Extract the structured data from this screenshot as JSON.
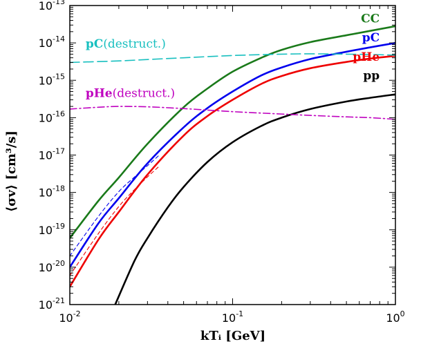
{
  "chart_data": {
    "type": "line",
    "xscale": "log",
    "yscale": "log",
    "xlim": [
      0.01,
      1
    ],
    "ylim": [
      1e-21,
      1e-13
    ],
    "xlabel": "kT_i [GeV]",
    "ylabel": "⟨σv⟩ [cm³/s]",
    "grid": false,
    "x_ticks": [
      {
        "value": 0.01,
        "base": "10",
        "exp": "-2"
      },
      {
        "value": 0.1,
        "base": "10",
        "exp": "-1"
      },
      {
        "value": 1,
        "base": "10",
        "exp": "0"
      }
    ],
    "y_ticks": [
      {
        "value": 1e-13,
        "base": "10",
        "exp": "-13"
      },
      {
        "value": 1e-14,
        "base": "10",
        "exp": "-14"
      },
      {
        "value": 1e-15,
        "base": "10",
        "exp": "-15"
      },
      {
        "value": 1e-16,
        "base": "10",
        "exp": "-16"
      },
      {
        "value": 1e-17,
        "base": "10",
        "exp": "-17"
      },
      {
        "value": 1e-18,
        "base": "10",
        "exp": "-18"
      },
      {
        "value": 1e-19,
        "base": "10",
        "exp": "-19"
      },
      {
        "value": 1e-20,
        "base": "10",
        "exp": "-20"
      },
      {
        "value": 1e-21,
        "base": "10",
        "exp": "-21"
      }
    ],
    "series": [
      {
        "name": "CC",
        "color": "#1a7a1a",
        "style": "solid",
        "x": [
          0.01,
          0.015,
          0.02,
          0.03,
          0.05,
          0.07,
          0.1,
          0.15,
          0.2,
          0.3,
          0.5,
          0.7,
          1.0
        ],
        "y": [
          6e-20,
          6e-19,
          2.5e-18,
          2e-17,
          1.9e-16,
          6e-16,
          1.7e-15,
          4e-15,
          6.5e-15,
          1.05e-14,
          1.6e-14,
          2.1e-14,
          2.8e-14
        ]
      },
      {
        "name": "pC",
        "color": "#0000ee",
        "style": "solid",
        "x": [
          0.01,
          0.015,
          0.02,
          0.03,
          0.05,
          0.07,
          0.1,
          0.15,
          0.2,
          0.3,
          0.5,
          0.7,
          1.0
        ],
        "y": [
          1e-20,
          1.5e-19,
          7e-19,
          6e-18,
          5.5e-17,
          1.8e-16,
          5e-16,
          1.35e-15,
          2.2e-15,
          3.7e-15,
          5.8e-15,
          7.6e-15,
          1e-14
        ]
      },
      {
        "name": "pHe",
        "color": "#ee0000",
        "style": "solid",
        "x": [
          0.01,
          0.015,
          0.02,
          0.03,
          0.05,
          0.07,
          0.1,
          0.15,
          0.2,
          0.3,
          0.5,
          0.7,
          1.0
        ],
        "y": [
          3e-21,
          5.5e-20,
          3e-19,
          3e-18,
          3.3e-17,
          1.1e-16,
          3e-16,
          8e-16,
          1.3e-15,
          2.1e-15,
          3.1e-15,
          3.8e-15,
          4.5e-15
        ]
      },
      {
        "name": "pp",
        "color": "#000000",
        "style": "solid",
        "x": [
          0.019,
          0.025,
          0.03,
          0.04,
          0.05,
          0.07,
          0.1,
          0.15,
          0.2,
          0.3,
          0.5,
          0.7,
          1.0
        ],
        "y": [
          1e-21,
          1.5e-20,
          6e-20,
          4e-19,
          1.4e-18,
          6.5e-18,
          2.2e-17,
          6e-17,
          1e-16,
          1.7e-16,
          2.7e-16,
          3.4e-16,
          4.2e-16
        ]
      },
      {
        "name": "pC(destruct.)",
        "color": "#17bfbf",
        "style": "dashed",
        "x": [
          0.01,
          0.02,
          0.03,
          0.05,
          0.1,
          0.2,
          0.3,
          0.5,
          0.7,
          1.0
        ],
        "y": [
          3e-15,
          3.3e-15,
          3.6e-15,
          4e-15,
          4.6e-15,
          5e-15,
          5.1e-15,
          5e-15,
          4.9e-15,
          4.7e-15
        ]
      },
      {
        "name": "pHe(destruct.)",
        "color": "#bf00bf",
        "style": "dashdot",
        "x": [
          0.01,
          0.015,
          0.02,
          0.03,
          0.05,
          0.1,
          0.2,
          0.3,
          0.5,
          0.7,
          1.0
        ],
        "y": [
          1.7e-16,
          1.9e-16,
          2e-16,
          1.95e-16,
          1.75e-16,
          1.45e-16,
          1.25e-16,
          1.15e-16,
          1.05e-16,
          1e-16,
          9e-17
        ]
      },
      {
        "name": "",
        "color": "#0000ee",
        "style": "thin-dashed",
        "x": [
          0.01,
          0.015,
          0.02,
          0.025,
          0.03,
          0.035
        ],
        "y": [
          2e-20,
          2.3e-19,
          1.05e-18,
          2.6e-18,
          5.2e-18,
          9.5e-18
        ]
      },
      {
        "name": "",
        "color": "#ee0000",
        "style": "thin-dashed",
        "x": [
          0.01,
          0.015,
          0.02,
          0.025,
          0.03,
          0.035
        ],
        "y": [
          6e-21,
          8e-20,
          4.2e-19,
          1.2e-18,
          2.6e-18,
          4.8e-18
        ]
      }
    ],
    "labels": [
      {
        "key": "CC",
        "bold": "CC",
        "normal": "",
        "color": "#1a7a1a",
        "x": 0.8,
        "y": 3.5e-14,
        "anchor": "end"
      },
      {
        "key": "pC",
        "bold": "pC",
        "normal": "",
        "color": "#0000ee",
        "x": 0.8,
        "y": 1.1e-14,
        "anchor": "end"
      },
      {
        "key": "pHe",
        "bold": "pHe",
        "normal": "",
        "color": "#ee0000",
        "x": 0.8,
        "y": 3.3e-15,
        "anchor": "end"
      },
      {
        "key": "pp",
        "bold": "pp",
        "normal": "",
        "color": "#000000",
        "x": 0.8,
        "y": 1.05e-15,
        "anchor": "end"
      },
      {
        "key": "pC-destruct",
        "bold": "pC",
        "normal": "(destruct.)",
        "color": "#17bfbf",
        "x": 0.0125,
        "y": 7.5e-15,
        "anchor": "start"
      },
      {
        "key": "pHe-destruct",
        "bold": "pHe",
        "normal": "(destruct.)",
        "color": "#bf00bf",
        "x": 0.0125,
        "y": 3.6e-16,
        "anchor": "start"
      }
    ]
  }
}
